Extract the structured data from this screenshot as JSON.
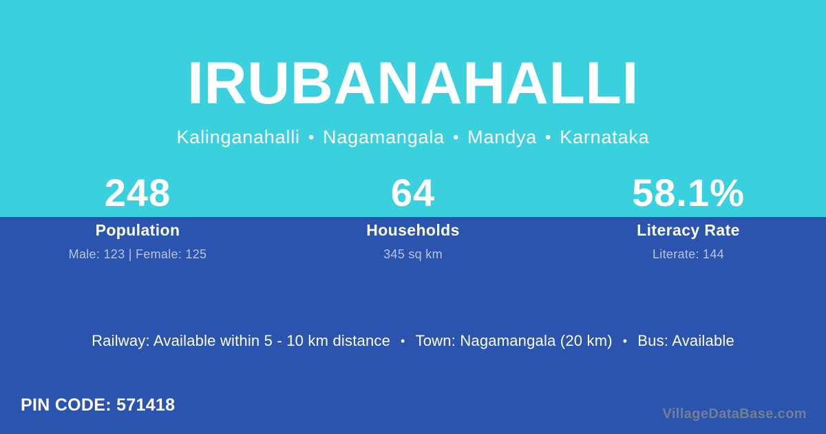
{
  "theme": {
    "bg_top": "#3ad0de",
    "bg_bottom": "#2a54ae",
    "text": "#ffffff",
    "muted": "#b9c4e4",
    "watermark": "#75808f"
  },
  "header": {
    "title": "IRUBANAHALLI",
    "location_parts": [
      "Kalinganahalli",
      "Nagamangala",
      "Mandya",
      "Karnataka"
    ],
    "separator": "•"
  },
  "stats": [
    {
      "value": "248",
      "label": "Population",
      "detail": "Male: 123 | Female: 125"
    },
    {
      "value": "64",
      "label": "Households",
      "detail": "345 sq km"
    },
    {
      "value": "58.1%",
      "label": "Literacy Rate",
      "detail": "Literate: 144"
    }
  ],
  "transport": {
    "railway": "Railway: Available within 5 - 10 km distance",
    "town": "Town: Nagamangala (20 km)",
    "bus": "Bus: Available",
    "separator": "•"
  },
  "footer": {
    "pin_code": "PIN CODE: 571418",
    "watermark": "VillageDataBase.com"
  }
}
